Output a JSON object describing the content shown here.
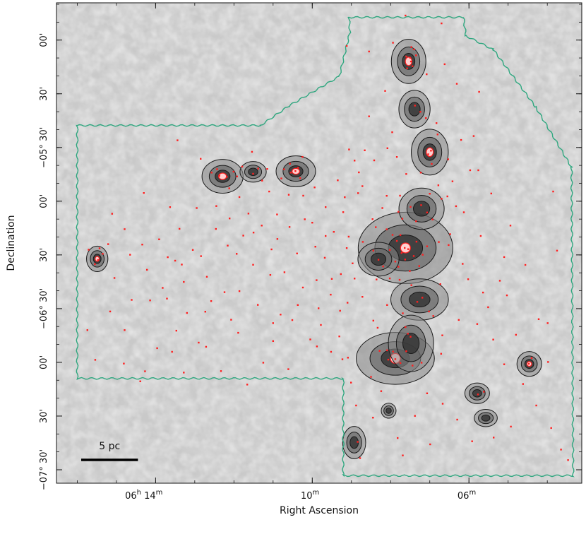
{
  "chart_data": {
    "type": "scatter",
    "xlabel": "Right Ascension",
    "ylabel": "Declination",
    "x_ticks": [
      {
        "label_h": "06",
        "h_unit": "h",
        "label_m": "14",
        "m_unit": "m",
        "ra_min": 14
      },
      {
        "label_h": "",
        "h_unit": "",
        "label_m": "10",
        "m_unit": "m",
        "ra_min": 10
      },
      {
        "label_h": "",
        "h_unit": "",
        "label_m": "06",
        "m_unit": "m",
        "ra_min": 6
      }
    ],
    "y_ticks": [
      {
        "label": "00'",
        "dec_arcmin": -240
      },
      {
        "label": "30'",
        "dec_arcmin": -270
      },
      {
        "label": "−05° 30'",
        "dec_arcmin": -300
      },
      {
        "label": "00'",
        "dec_arcmin": -330
      },
      {
        "label": "30'",
        "dec_arcmin": -360
      },
      {
        "label": "−06° 30'",
        "dec_arcmin": -390
      },
      {
        "label": "00'",
        "dec_arcmin": -420
      },
      {
        "label": "30'",
        "dec_arcmin": -450
      },
      {
        "label": "−07° 30'",
        "dec_arcmin": -480
      }
    ],
    "xlim_ra_min": [
      16.53,
      3.12
    ],
    "ylim_dec_arcmin": [
      -219.2,
      -487.5
    ],
    "scale_bar": {
      "label": "5 pc",
      "length_ra_min": 1.45
    },
    "colors": {
      "background": "#c9c9c9",
      "survey_outline": "#2fa77f",
      "contours": "#1a1a1a",
      "sources": "#ff2020",
      "peak_highlight": "#ffd0d0"
    },
    "survey_outline_ra_dec": [
      [
        9.06,
        -227.3
      ],
      [
        6.14,
        -227.3
      ],
      [
        6.08,
        -237.6
      ],
      [
        5.38,
        -245.3
      ],
      [
        4.3,
        -277.3
      ],
      [
        3.38,
        -311.1
      ],
      [
        3.34,
        -483.3
      ],
      [
        9.21,
        -483.3
      ],
      [
        9.21,
        -429.0
      ],
      [
        16.0,
        -429.0
      ],
      [
        16.0,
        -287.7
      ],
      [
        11.32,
        -287.7
      ],
      [
        10.59,
        -276.7
      ],
      [
        9.31,
        -260.3
      ],
      [
        9.04,
        -235.7
      ]
    ],
    "clumps": [
      {
        "ra": 7.54,
        "dec": -251.9,
        "rx": 0.42,
        "ry": 11.8,
        "peak": true
      },
      {
        "ra": 7.39,
        "dec": -278.6,
        "rx": 0.38,
        "ry": 10.0,
        "peak": false
      },
      {
        "ra": 7.0,
        "dec": -302.6,
        "rx": 0.45,
        "ry": 12.2,
        "peak": true
      },
      {
        "ra": 7.62,
        "dec": -356.1,
        "rx": 1.15,
        "ry": 19.0,
        "peak": true
      },
      {
        "ra": 7.21,
        "dec": -334.2,
        "rx": 0.55,
        "ry": 11.0,
        "peak": false
      },
      {
        "ra": 7.26,
        "dec": -384.9,
        "rx": 0.7,
        "ry": 11.0,
        "peak": false
      },
      {
        "ra": 8.31,
        "dec": -362.4,
        "rx": 0.5,
        "ry": 9.0,
        "peak": false
      },
      {
        "ra": 7.88,
        "dec": -417.8,
        "rx": 0.95,
        "ry": 13.8,
        "peak": true
      },
      {
        "ra": 7.48,
        "dec": -409.4,
        "rx": 0.55,
        "ry": 15.0,
        "peak": false
      },
      {
        "ra": 10.42,
        "dec": -313.3,
        "rx": 0.48,
        "ry": 8.2,
        "peak": true
      },
      {
        "ra": 12.29,
        "dec": -316.1,
        "rx": 0.5,
        "ry": 9.0,
        "peak": true
      },
      {
        "ra": 11.51,
        "dec": -313.6,
        "rx": 0.32,
        "ry": 5.5,
        "peak": false
      },
      {
        "ra": 15.49,
        "dec": -362.2,
        "rx": 0.26,
        "ry": 6.8,
        "peak": true
      },
      {
        "ra": 4.46,
        "dec": -420.9,
        "rx": 0.3,
        "ry": 6.6,
        "peak": true
      },
      {
        "ra": 5.79,
        "dec": -437.3,
        "rx": 0.3,
        "ry": 5.5,
        "peak": false
      },
      {
        "ra": 5.57,
        "dec": -451.1,
        "rx": 0.28,
        "ry": 4.6,
        "peak": false
      },
      {
        "ra": 8.93,
        "dec": -464.8,
        "rx": 0.28,
        "ry": 8.6,
        "peak": false
      },
      {
        "ra": 8.05,
        "dec": -447.0,
        "rx": 0.18,
        "ry": 4.0,
        "peak": false
      }
    ],
    "sources_ra_dec": [
      [
        7.48,
        -252.0
      ],
      [
        7.5,
        -249.9
      ],
      [
        7.58,
        -255.8
      ],
      [
        7.44,
        -254.6
      ],
      [
        7.4,
        -245.2
      ],
      [
        7.47,
        -243.9
      ],
      [
        7.6,
        -249.2
      ],
      [
        7.35,
        -248.5
      ],
      [
        7.38,
        -276.6
      ],
      [
        7.24,
        -280.1
      ],
      [
        7.1,
        -283.6
      ],
      [
        7.04,
        -303.8
      ],
      [
        6.97,
        -301.8
      ],
      [
        6.95,
        -309.2
      ],
      [
        6.8,
        -292.7
      ],
      [
        6.83,
        -286.4
      ],
      [
        7.64,
        -356.1
      ],
      [
        7.55,
        -356.8
      ],
      [
        7.72,
        -358.9
      ],
      [
        7.84,
        -352.2
      ],
      [
        7.75,
        -348.9
      ],
      [
        7.34,
        -352.6
      ],
      [
        7.41,
        -360.6
      ],
      [
        7.88,
        -363.7
      ],
      [
        8.02,
        -357.2
      ],
      [
        7.95,
        -348.8
      ],
      [
        8.19,
        -366.4
      ],
      [
        7.63,
        -362.6
      ],
      [
        7.51,
        -369.0
      ],
      [
        7.27,
        -366.2
      ],
      [
        7.18,
        -359.9
      ],
      [
        7.07,
        -355.2
      ],
      [
        7.8,
        -366.6
      ],
      [
        7.47,
        -376.9
      ],
      [
        7.77,
        -373.9
      ],
      [
        8.02,
        -373.1
      ],
      [
        7.32,
        -386.2
      ],
      [
        7.19,
        -383.9
      ],
      [
        7.7,
        -339.8
      ],
      [
        7.8,
        -335.9
      ],
      [
        8.1,
        -345.7
      ],
      [
        8.38,
        -344.5
      ],
      [
        8.44,
        -357.6
      ],
      [
        8.31,
        -362.7
      ],
      [
        7.07,
        -336.3
      ],
      [
        7.22,
        -332.2
      ],
      [
        7.0,
        -325.8
      ],
      [
        7.35,
        -341.2
      ],
      [
        7.88,
        -418.2
      ],
      [
        7.75,
        -420.4
      ],
      [
        8.06,
        -418.5
      ],
      [
        7.94,
        -414.0
      ],
      [
        8.09,
        -413.3
      ],
      [
        7.6,
        -413.8
      ],
      [
        7.56,
        -404.0
      ],
      [
        7.49,
        -405.7
      ],
      [
        7.62,
        -400.3
      ],
      [
        8.33,
        -400.7
      ],
      [
        8.28,
        -413.6
      ],
      [
        10.43,
        -313.2
      ],
      [
        10.36,
        -311.3
      ],
      [
        10.31,
        -317.1
      ],
      [
        10.55,
        -314.0
      ],
      [
        10.57,
        -309.1
      ],
      [
        10.72,
        -312.2
      ],
      [
        10.79,
        -317.3
      ],
      [
        11.15,
        -312.0
      ],
      [
        11.38,
        -311.8
      ],
      [
        11.51,
        -314.7
      ],
      [
        11.28,
        -318.5
      ],
      [
        12.18,
        -316.4
      ],
      [
        12.37,
        -315.8
      ],
      [
        12.43,
        -312.1
      ],
      [
        12.01,
        -313.5
      ],
      [
        11.92,
        -316.2
      ],
      [
        11.79,
        -310.7
      ],
      [
        12.12,
        -322.8
      ],
      [
        12.57,
        -314.0
      ],
      [
        15.47,
        -362.8
      ],
      [
        15.55,
        -365.2
      ],
      [
        15.43,
        -356.3
      ],
      [
        15.35,
        -359.4
      ],
      [
        15.21,
        -354.0
      ],
      [
        15.71,
        -357.1
      ],
      [
        4.47,
        -420.8
      ],
      [
        4.4,
        -417.6
      ],
      [
        8.84,
        -464.4
      ],
      [
        5.77,
        -437.9
      ],
      [
        5.62,
        -436.4
      ],
      [
        8.42,
        -307.2
      ],
      [
        8.66,
        -301.6
      ],
      [
        9.06,
        -301.1
      ],
      [
        8.92,
        -307.3
      ],
      [
        9.35,
        -318.3
      ],
      [
        8.72,
        -321.6
      ],
      [
        9.21,
        -336.1
      ],
      [
        8.71,
        -352.7
      ],
      [
        9.07,
        -349.8
      ],
      [
        9.45,
        -347.1
      ],
      [
        9.66,
        -349.4
      ],
      [
        9.92,
        -355.4
      ],
      [
        10.0,
        -342.0
      ],
      [
        10.19,
        -340.1
      ],
      [
        10.58,
        -344.4
      ],
      [
        10.89,
        -351.1
      ],
      [
        11.04,
        -356.9
      ],
      [
        11.29,
        -343.6
      ],
      [
        11.5,
        -347.5
      ],
      [
        11.76,
        -349.2
      ],
      [
        12.16,
        -354.8
      ],
      [
        12.46,
        -345.5
      ],
      [
        12.84,
        -360.7
      ],
      [
        13.05,
        -357.2
      ],
      [
        13.5,
        -363.2
      ],
      [
        13.91,
        -351.3
      ],
      [
        14.34,
        -354.2
      ],
      [
        14.79,
        -345.6
      ],
      [
        15.05,
        -372.9
      ],
      [
        15.74,
        -402.0
      ],
      [
        14.79,
        -402.0
      ],
      [
        13.71,
        -384.4
      ],
      [
        13.2,
        -392.4
      ],
      [
        12.9,
        -409.0
      ],
      [
        12.58,
        -385.8
      ],
      [
        12.24,
        -380.8
      ],
      [
        11.86,
        -380.2
      ],
      [
        11.39,
        -387.9
      ],
      [
        11.0,
        -398.1
      ],
      [
        10.81,
        -393.3
      ],
      [
        10.37,
        -388.0
      ],
      [
        9.89,
        -374.1
      ],
      [
        9.53,
        -382.2
      ],
      [
        9.1,
        -386.7
      ],
      [
        8.92,
        -373.2
      ],
      [
        8.72,
        -383.4
      ],
      [
        8.44,
        -396.7
      ],
      [
        14.39,
        -430.6
      ],
      [
        13.28,
        -425.7
      ],
      [
        11.25,
        -420.2
      ],
      [
        12.71,
        -411.3
      ],
      [
        13.96,
        -412.1
      ],
      [
        9.31,
        -405.5
      ],
      [
        9.23,
        -418.3
      ],
      [
        9.88,
        -411.1
      ],
      [
        13.63,
        -333.3
      ],
      [
        12.95,
        -333.8
      ],
      [
        11.86,
        -327.7
      ],
      [
        11.1,
        -324.6
      ],
      [
        10.6,
        -326.4
      ],
      [
        13.39,
        -345.4
      ],
      [
        14.22,
        -368.3
      ],
      [
        14.14,
        -385.4
      ],
      [
        7.94,
        -241.5
      ],
      [
        7.62,
        -226.3
      ],
      [
        6.7,
        -230.7
      ],
      [
        8.55,
        -246.4
      ],
      [
        9.12,
        -243.3
      ],
      [
        8.14,
        -268.4
      ],
      [
        8.55,
        -282.6
      ],
      [
        7.08,
        -259.1
      ],
      [
        6.62,
        -253.5
      ],
      [
        6.31,
        -264.4
      ],
      [
        5.74,
        -268.9
      ],
      [
        6.2,
        -295.8
      ],
      [
        5.76,
        -312.7
      ],
      [
        6.13,
        -336.2
      ],
      [
        6.77,
        -352.8
      ],
      [
        6.48,
        -348.4
      ],
      [
        6.16,
        -365.0
      ],
      [
        6.02,
        -373.6
      ],
      [
        5.7,
        -349.4
      ],
      [
        5.1,
        -361.2
      ],
      [
        5.51,
        -389.2
      ],
      [
        5.38,
        -407.3
      ],
      [
        5.03,
        -382.6
      ],
      [
        4.56,
        -365.6
      ],
      [
        4.22,
        -395.9
      ],
      [
        4.28,
        -444.1
      ],
      [
        3.98,
        -419.8
      ],
      [
        3.99,
        -398.1
      ],
      [
        3.75,
        -357.6
      ],
      [
        3.85,
        -324.6
      ],
      [
        3.47,
        -474.6
      ],
      [
        3.65,
        -468.7
      ],
      [
        3.9,
        -456.7
      ],
      [
        4.93,
        -455.9
      ],
      [
        5.37,
        -462.0
      ],
      [
        5.92,
        -464.1
      ],
      [
        6.3,
        -452.0
      ],
      [
        6.67,
        -443.1
      ],
      [
        7.07,
        -437.3
      ],
      [
        7.38,
        -449.9
      ],
      [
        7.82,
        -462.3
      ],
      [
        8.45,
        -450.9
      ],
      [
        8.88,
        -444.1
      ],
      [
        9.01,
        -431.3
      ],
      [
        9.09,
        -417.4
      ],
      [
        8.5,
        -428.1
      ],
      [
        8.24,
        -436.1
      ],
      [
        8.21,
        -333.8
      ],
      [
        8.46,
        -340.0
      ],
      [
        8.1,
        -327.0
      ],
      [
        7.76,
        -326.9
      ],
      [
        7.23,
        -314.0
      ],
      [
        6.78,
        -321.1
      ],
      [
        6.55,
        -327.3
      ],
      [
        7.49,
        -333.2
      ],
      [
        8.83,
        -325.5
      ],
      [
        9.12,
        -356.2
      ],
      [
        8.97,
        -364.7
      ],
      [
        8.36,
        -373.7
      ],
      [
        9.27,
        -370.7
      ],
      [
        6.93,
        -340.2
      ],
      [
        6.52,
        -354.5
      ],
      [
        6.73,
        -376.3
      ],
      [
        7.02,
        -391.6
      ],
      [
        7.69,
        -392.6
      ],
      [
        8.09,
        -388.0
      ],
      [
        7.44,
        -421.8
      ],
      [
        7.21,
        -420.2
      ],
      [
        6.71,
        -415.2
      ],
      [
        6.68,
        -404.9
      ],
      [
        6.91,
        -394.1
      ],
      [
        7.84,
        -305.3
      ],
      [
        7.96,
        -291.5
      ],
      [
        7.6,
        -314.8
      ],
      [
        8.08,
        -300.4
      ],
      [
        6.53,
        -306.6
      ],
      [
        6.42,
        -318.9
      ],
      [
        5.97,
        -312.7
      ],
      [
        6.33,
        -332.8
      ],
      [
        6.7,
        -328.6
      ],
      [
        5.21,
        -374.4
      ],
      [
        4.94,
        -343.6
      ],
      [
        5.43,
        -325.7
      ],
      [
        5.88,
        -293.6
      ],
      [
        5.64,
        -381.0
      ],
      [
        4.8,
        -404.6
      ],
      [
        5.1,
        -421.1
      ],
      [
        4.62,
        -432.1
      ],
      [
        5.79,
        -398.6
      ],
      [
        6.26,
        -396.3
      ],
      [
        6.99,
        -465.8
      ],
      [
        7.69,
        -472.0
      ],
      [
        8.78,
        -473.5
      ],
      [
        9.84,
        -389.8
      ],
      [
        10.24,
        -378.2
      ],
      [
        10.71,
        -369.7
      ],
      [
        11.51,
        -365.5
      ],
      [
        11.93,
        -359.4
      ],
      [
        12.69,
        -372.2
      ],
      [
        13.28,
        -375.1
      ],
      [
        14.61,
        -385.1
      ],
      [
        15.16,
        -391.6
      ],
      [
        13.47,
        -402.3
      ],
      [
        12.07,
        -396.2
      ],
      [
        11.0,
        -408.1
      ],
      [
        10.05,
        -407.2
      ],
      [
        9.52,
        -414.1
      ],
      [
        10.61,
        -423.8
      ],
      [
        11.66,
        -432.4
      ],
      [
        12.33,
        -424.9
      ],
      [
        14.81,
        -420.7
      ],
      [
        15.54,
        -418.6
      ],
      [
        14.27,
        -425.0
      ],
      [
        13.58,
        -414.1
      ],
      [
        11.07,
        -371.2
      ],
      [
        10.39,
        -359.2
      ],
      [
        9.68,
        -361.6
      ],
      [
        9.5,
        -373.4
      ],
      [
        9.29,
        -391.2
      ],
      [
        9.78,
        -399.1
      ],
      [
        10.51,
        -396.4
      ],
      [
        11.89,
        -403.5
      ],
      [
        12.73,
        -391.7
      ],
      [
        13.33,
        -365.4
      ],
      [
        12.11,
        -339.6
      ],
      [
        11.63,
        -336.9
      ],
      [
        12.45,
        -332.7
      ],
      [
        10.9,
        -337.4
      ],
      [
        10.23,
        -326.9
      ],
      [
        9.66,
        -333.3
      ],
      [
        9.17,
        -327.8
      ],
      [
        8.81,
        -313.9
      ],
      [
        9.94,
        -322.3
      ],
      [
        10.25,
        -305.3
      ],
      [
        11.54,
        -302.4
      ],
      [
        12.85,
        -306.3
      ],
      [
        13.44,
        -296.0
      ],
      [
        14.3,
        -325.4
      ],
      [
        15.11,
        -337.0
      ],
      [
        14.65,
        -359.9
      ],
      [
        13.69,
        -361.3
      ],
      [
        13.82,
        -378.4
      ]
    ]
  }
}
